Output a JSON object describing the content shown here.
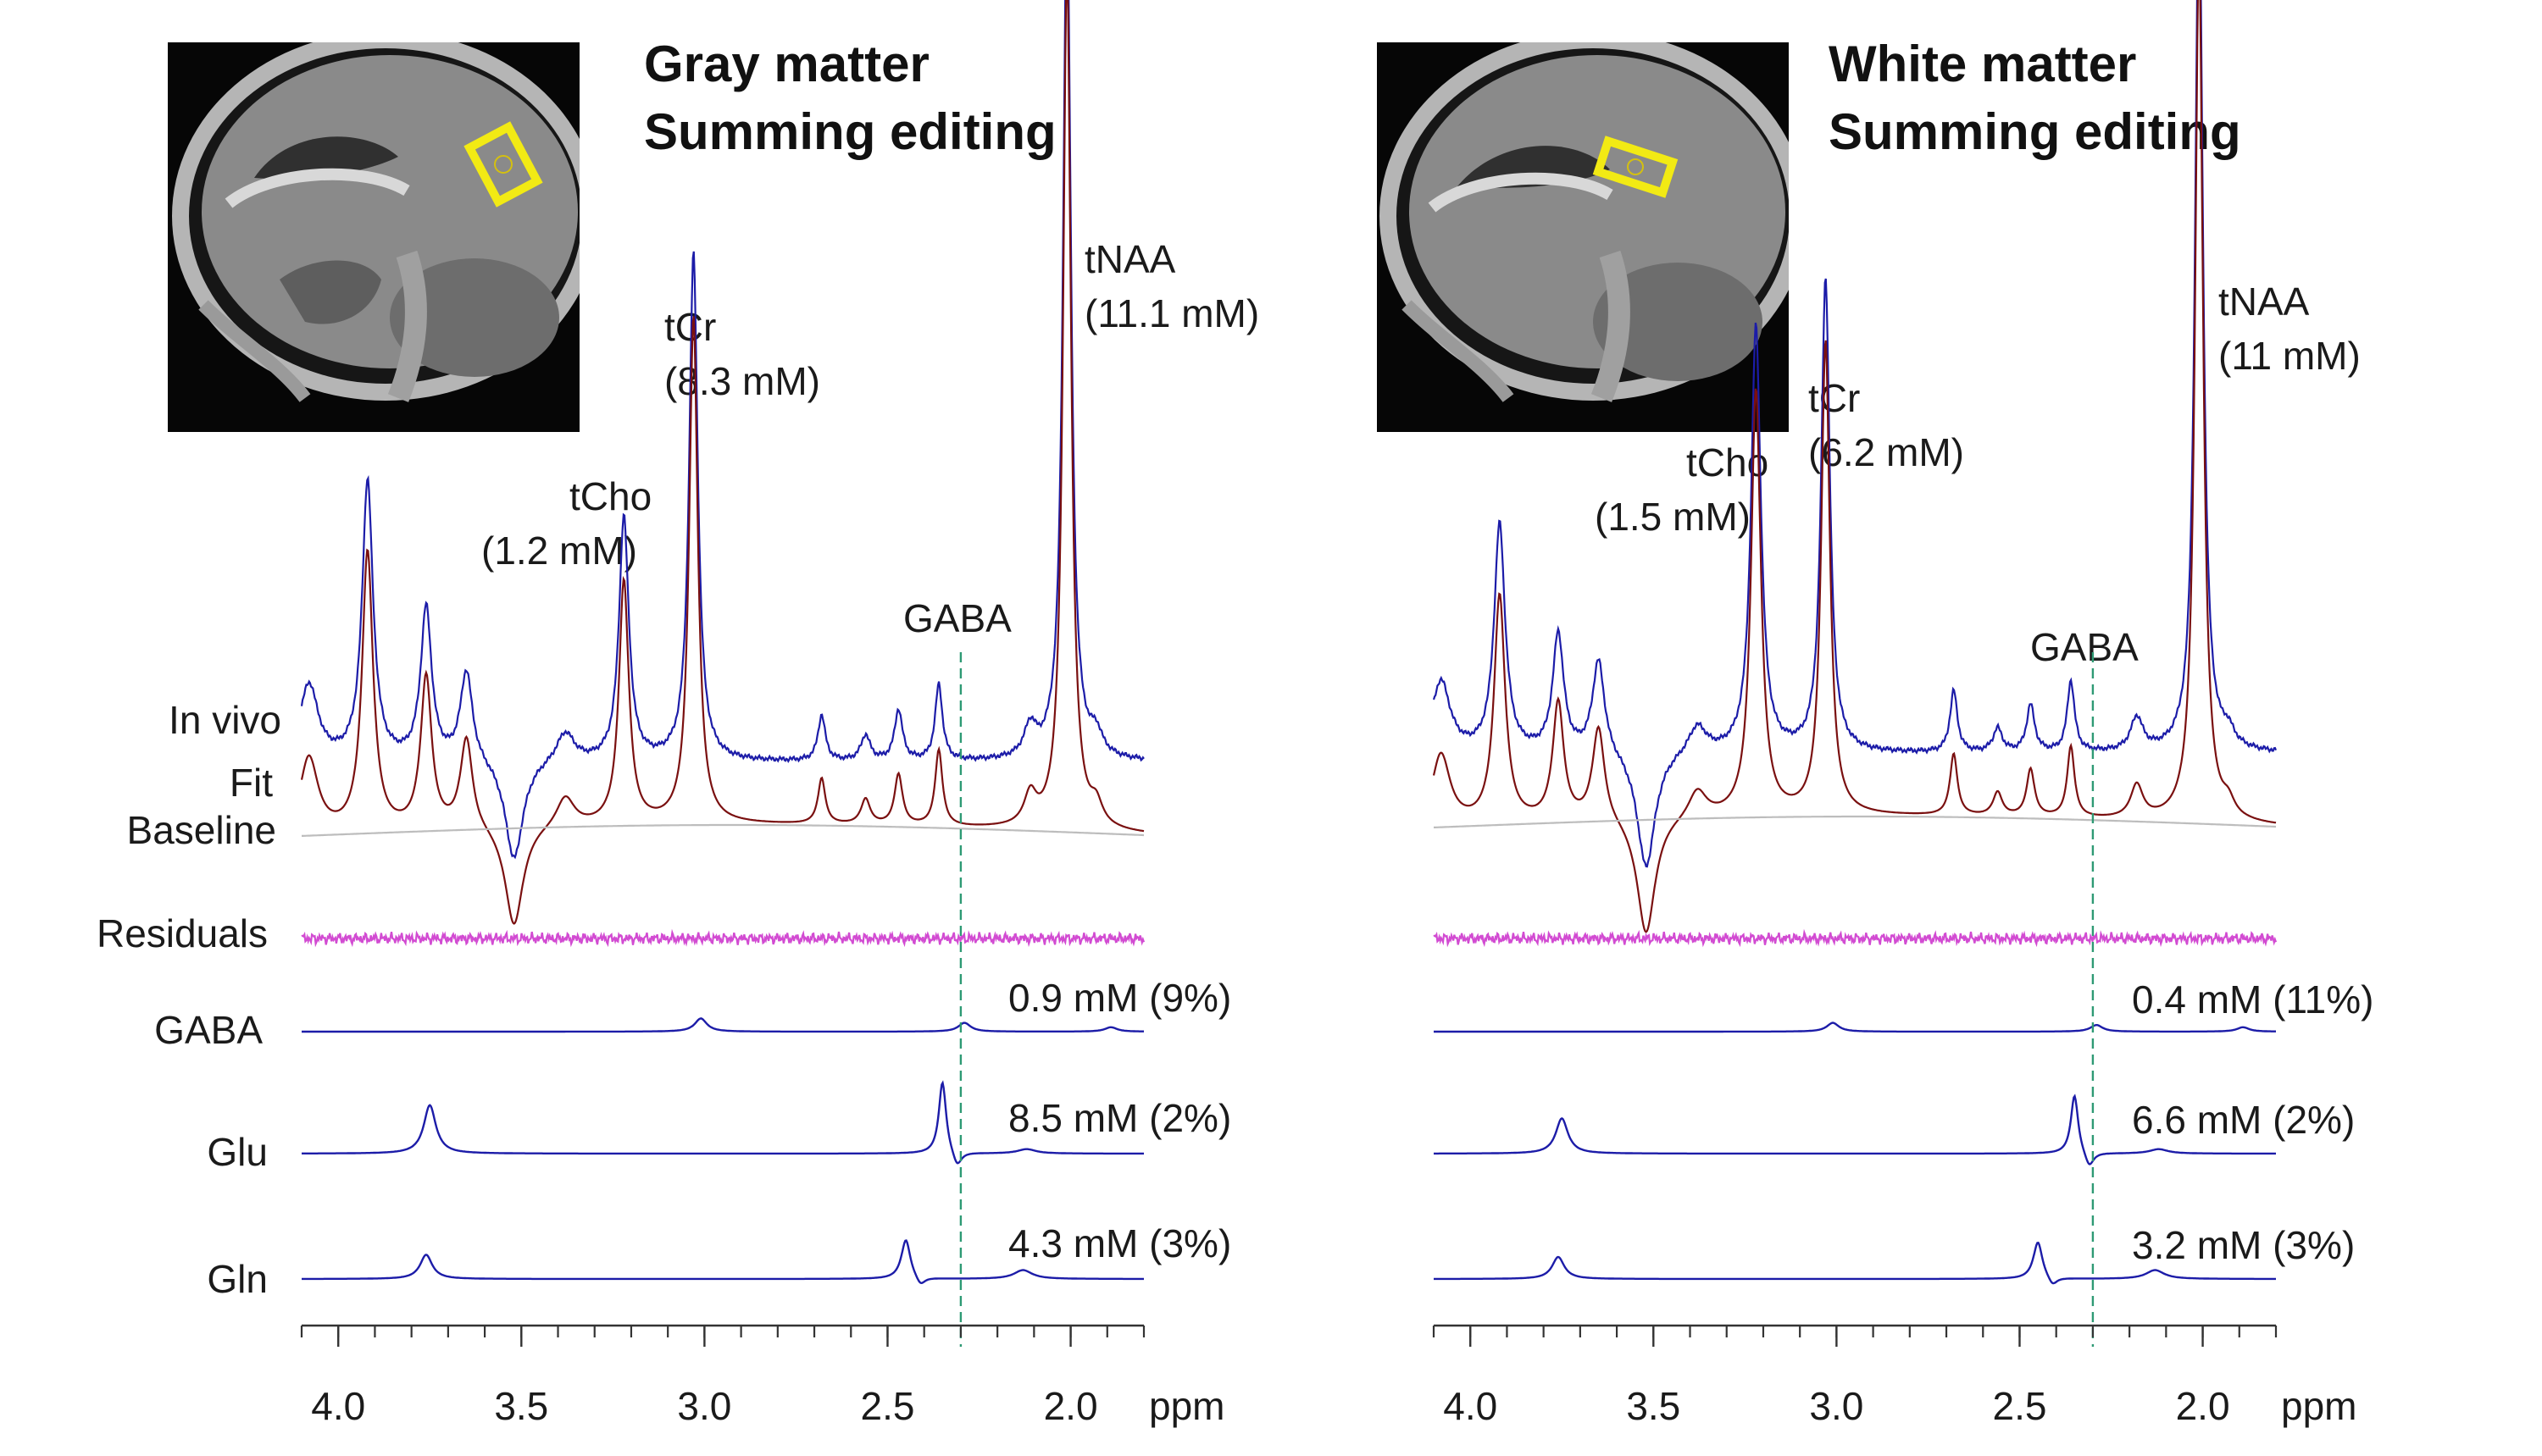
{
  "colors": {
    "in_vivo": "#1c1ca8",
    "fit": "#7a1010",
    "baseline": "#bdbdbd",
    "residuals": "#d24bd2",
    "component": "#1c1ca8",
    "gaba_marker": "#2e9a74",
    "mri_box": "#f2ea14"
  },
  "chart_data": [
    {
      "type": "line",
      "title": [
        "Gray matter",
        "Summing editing"
      ],
      "xlabel": "ppm",
      "x_direction": "reversed",
      "xlim": [
        4.1,
        1.8
      ],
      "x_ticks": [
        4.0,
        3.5,
        3.0,
        2.5,
        2.0
      ],
      "x_tick_labels": [
        "4.0",
        "3.5",
        "3.0",
        "2.5",
        "2.0"
      ],
      "trace_labels": [
        "In vivo",
        "Fit",
        "Baseline",
        "Residuals",
        "GABA",
        "Glu",
        "Gln"
      ],
      "peak_annotations": [
        {
          "name": "tNAA",
          "conc": "(11.1 mM)",
          "ppm": 2.01
        },
        {
          "name": "tCr",
          "conc": "(8.3 mM)",
          "ppm": 3.03
        },
        {
          "name": "tCho",
          "conc": "(1.2 mM)",
          "ppm": 3.22
        }
      ],
      "gaba_marker": {
        "label": "GABA",
        "ppm": 2.3
      },
      "series": [
        {
          "name": "In vivo",
          "peaks": [
            {
              "ppm": 4.08,
              "amp": 0.15,
              "w": 0.03
            },
            {
              "ppm": 3.92,
              "amp": 0.55,
              "w": 0.018
            },
            {
              "ppm": 3.76,
              "amp": 0.3,
              "w": 0.018
            },
            {
              "ppm": 3.65,
              "amp": 0.18,
              "w": 0.02
            },
            {
              "ppm": 3.52,
              "amp": -0.2,
              "w": 0.03
            },
            {
              "ppm": 3.38,
              "amp": 0.06,
              "w": 0.03
            },
            {
              "ppm": 3.22,
              "amp": 0.48,
              "w": 0.016
            },
            {
              "ppm": 3.03,
              "amp": 1.0,
              "w": 0.014
            },
            {
              "ppm": 2.68,
              "amp": 0.09,
              "w": 0.012
            },
            {
              "ppm": 2.56,
              "amp": 0.05,
              "w": 0.015
            },
            {
              "ppm": 2.47,
              "amp": 0.1,
              "w": 0.013
            },
            {
              "ppm": 2.36,
              "amp": 0.15,
              "w": 0.012
            },
            {
              "ppm": 2.11,
              "amp": 0.06,
              "w": 0.02
            },
            {
              "ppm": 2.01,
              "amp": 1.7,
              "w": 0.013
            },
            {
              "ppm": 1.93,
              "amp": 0.04,
              "w": 0.02
            }
          ]
        },
        {
          "name": "Fit",
          "peaks": [
            {
              "ppm": 4.08,
              "amp": 0.15,
              "w": 0.03
            },
            {
              "ppm": 3.92,
              "amp": 0.55,
              "w": 0.018
            },
            {
              "ppm": 3.76,
              "amp": 0.3,
              "w": 0.018
            },
            {
              "ppm": 3.65,
              "amp": 0.18,
              "w": 0.02
            },
            {
              "ppm": 3.52,
              "amp": -0.2,
              "w": 0.03
            },
            {
              "ppm": 3.38,
              "amp": 0.06,
              "w": 0.03
            },
            {
              "ppm": 3.22,
              "amp": 0.48,
              "w": 0.016
            },
            {
              "ppm": 3.03,
              "amp": 1.0,
              "w": 0.014
            },
            {
              "ppm": 2.68,
              "amp": 0.09,
              "w": 0.012
            },
            {
              "ppm": 2.56,
              "amp": 0.05,
              "w": 0.015
            },
            {
              "ppm": 2.47,
              "amp": 0.1,
              "w": 0.013
            },
            {
              "ppm": 2.36,
              "amp": 0.15,
              "w": 0.012
            },
            {
              "ppm": 2.11,
              "amp": 0.06,
              "w": 0.02
            },
            {
              "ppm": 2.01,
              "amp": 1.7,
              "w": 0.013
            },
            {
              "ppm": 1.93,
              "amp": 0.04,
              "w": 0.02
            }
          ]
        },
        {
          "name": "Baseline",
          "peaks": []
        },
        {
          "name": "Residuals",
          "peaks": []
        },
        {
          "name": "GABA",
          "quant": "0.9 mM (9%)",
          "peaks": [
            {
              "ppm": 3.01,
              "amp": 0.06,
              "w": 0.02
            },
            {
              "ppm": 2.29,
              "amp": 0.04,
              "w": 0.02
            },
            {
              "ppm": 1.89,
              "amp": 0.02,
              "w": 0.02
            }
          ]
        },
        {
          "name": "Glu",
          "quant": "8.5 mM (2%)",
          "peaks": [
            {
              "ppm": 3.75,
              "amp": 0.22,
              "w": 0.02
            },
            {
              "ppm": 2.35,
              "amp": 0.33,
              "w": 0.012
            },
            {
              "ppm": 2.31,
              "amp": -0.07,
              "w": 0.015
            },
            {
              "ppm": 2.12,
              "amp": 0.02,
              "w": 0.03
            }
          ]
        },
        {
          "name": "Gln",
          "quant": "4.3 mM (3%)",
          "peaks": [
            {
              "ppm": 3.76,
              "amp": 0.11,
              "w": 0.02
            },
            {
              "ppm": 2.45,
              "amp": 0.18,
              "w": 0.015
            },
            {
              "ppm": 2.41,
              "amp": -0.04,
              "w": 0.015
            },
            {
              "ppm": 2.13,
              "amp": 0.04,
              "w": 0.03
            }
          ]
        }
      ]
    },
    {
      "type": "line",
      "title": [
        "White matter",
        "Summing editing"
      ],
      "xlabel": "ppm",
      "x_direction": "reversed",
      "xlim": [
        4.1,
        1.8
      ],
      "x_ticks": [
        4.0,
        3.5,
        3.0,
        2.5,
        2.0
      ],
      "x_tick_labels": [
        "4.0",
        "3.5",
        "3.0",
        "2.5",
        "2.0"
      ],
      "trace_labels": [],
      "peak_annotations": [
        {
          "name": "tNAA",
          "conc": "(11 mM)",
          "ppm": 2.01
        },
        {
          "name": "tCr",
          "conc": "(6.2 mM)",
          "ppm": 3.03
        },
        {
          "name": "tCho",
          "conc": "(1.5 mM)",
          "ppm": 3.22
        }
      ],
      "gaba_marker": {
        "label": "GABA",
        "ppm": 2.3
      },
      "series": [
        {
          "name": "In vivo",
          "peaks": [
            {
              "ppm": 4.08,
              "amp": 0.15,
              "w": 0.03
            },
            {
              "ppm": 3.92,
              "amp": 0.48,
              "w": 0.018
            },
            {
              "ppm": 3.76,
              "amp": 0.25,
              "w": 0.018
            },
            {
              "ppm": 3.65,
              "amp": 0.2,
              "w": 0.02
            },
            {
              "ppm": 3.52,
              "amp": -0.25,
              "w": 0.03
            },
            {
              "ppm": 3.38,
              "amp": 0.06,
              "w": 0.03
            },
            {
              "ppm": 3.22,
              "amp": 0.9,
              "w": 0.016
            },
            {
              "ppm": 3.03,
              "amp": 1.0,
              "w": 0.014
            },
            {
              "ppm": 2.68,
              "amp": 0.13,
              "w": 0.012
            },
            {
              "ppm": 2.56,
              "amp": 0.05,
              "w": 0.015
            },
            {
              "ppm": 2.47,
              "amp": 0.1,
              "w": 0.013
            },
            {
              "ppm": 2.36,
              "amp": 0.15,
              "w": 0.012
            },
            {
              "ppm": 2.18,
              "amp": 0.07,
              "w": 0.02
            },
            {
              "ppm": 2.01,
              "amp": 1.85,
              "w": 0.013
            },
            {
              "ppm": 1.93,
              "amp": 0.03,
              "w": 0.02
            }
          ]
        },
        {
          "name": "Fit",
          "peaks": [
            {
              "ppm": 4.08,
              "amp": 0.15,
              "w": 0.03
            },
            {
              "ppm": 3.92,
              "amp": 0.48,
              "w": 0.018
            },
            {
              "ppm": 3.76,
              "amp": 0.25,
              "w": 0.018
            },
            {
              "ppm": 3.65,
              "amp": 0.2,
              "w": 0.02
            },
            {
              "ppm": 3.52,
              "amp": -0.25,
              "w": 0.03
            },
            {
              "ppm": 3.38,
              "amp": 0.06,
              "w": 0.03
            },
            {
              "ppm": 3.22,
              "amp": 0.9,
              "w": 0.016
            },
            {
              "ppm": 3.03,
              "amp": 1.0,
              "w": 0.014
            },
            {
              "ppm": 2.68,
              "amp": 0.13,
              "w": 0.012
            },
            {
              "ppm": 2.56,
              "amp": 0.05,
              "w": 0.015
            },
            {
              "ppm": 2.47,
              "amp": 0.1,
              "w": 0.013
            },
            {
              "ppm": 2.36,
              "amp": 0.15,
              "w": 0.012
            },
            {
              "ppm": 2.18,
              "amp": 0.07,
              "w": 0.02
            },
            {
              "ppm": 2.01,
              "amp": 1.85,
              "w": 0.013
            },
            {
              "ppm": 1.93,
              "amp": 0.03,
              "w": 0.02
            }
          ]
        },
        {
          "name": "Baseline",
          "peaks": []
        },
        {
          "name": "Residuals",
          "peaks": []
        },
        {
          "name": "GABA",
          "quant": "0.4 mM (11%)",
          "peaks": [
            {
              "ppm": 3.01,
              "amp": 0.04,
              "w": 0.02
            },
            {
              "ppm": 2.29,
              "amp": 0.03,
              "w": 0.02
            },
            {
              "ppm": 1.89,
              "amp": 0.02,
              "w": 0.02
            }
          ]
        },
        {
          "name": "Glu",
          "quant": "6.6 mM (2%)",
          "peaks": [
            {
              "ppm": 3.75,
              "amp": 0.16,
              "w": 0.02
            },
            {
              "ppm": 2.35,
              "amp": 0.27,
              "w": 0.012
            },
            {
              "ppm": 2.31,
              "amp": -0.07,
              "w": 0.015
            },
            {
              "ppm": 2.12,
              "amp": 0.02,
              "w": 0.03
            }
          ]
        },
        {
          "name": "Gln",
          "quant": "3.2 mM (3%)",
          "peaks": [
            {
              "ppm": 3.76,
              "amp": 0.1,
              "w": 0.02
            },
            {
              "ppm": 2.45,
              "amp": 0.17,
              "w": 0.015
            },
            {
              "ppm": 2.41,
              "amp": -0.04,
              "w": 0.015
            },
            {
              "ppm": 2.13,
              "amp": 0.04,
              "w": 0.03
            }
          ]
        }
      ]
    }
  ]
}
